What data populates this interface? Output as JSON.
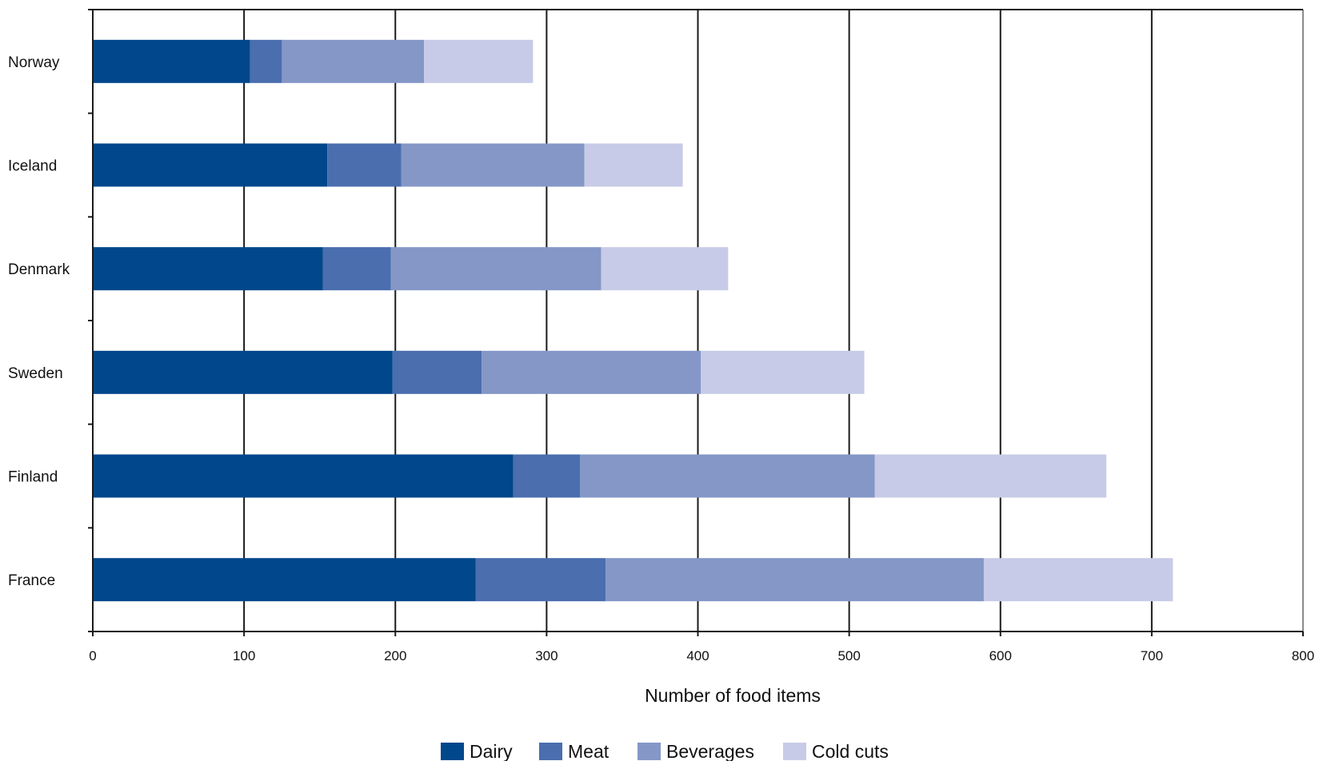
{
  "chart_data": {
    "type": "bar",
    "orientation": "horizontal",
    "stacked": true,
    "categories": [
      "Norway",
      "Iceland",
      "Denmark",
      "Sweden",
      "Finland",
      "France"
    ],
    "series": [
      {
        "name": "Dairy",
        "color": "#00478c",
        "values": [
          104,
          155,
          152,
          198,
          278,
          253
        ]
      },
      {
        "name": "Meat",
        "color": "#4a6eae",
        "values": [
          21,
          49,
          45,
          59,
          44,
          86
        ]
      },
      {
        "name": "Beverages",
        "color": "#8497c7",
        "values": [
          94,
          121,
          139,
          145,
          195,
          250
        ]
      },
      {
        "name": "Cold cuts",
        "color": "#c8cbe7",
        "values": [
          72,
          65,
          84,
          108,
          153,
          125
        ]
      }
    ],
    "xlabel": "Number of food items",
    "ylabel": "",
    "xlim": [
      0,
      800
    ],
    "xticks": [
      0,
      100,
      200,
      300,
      400,
      500,
      600,
      700,
      800
    ],
    "xtick_labels": [
      "0",
      "100",
      "200",
      "300",
      "400",
      "500",
      "600",
      "700",
      "800"
    ],
    "grid": "vertical",
    "legend_position": "bottom"
  }
}
